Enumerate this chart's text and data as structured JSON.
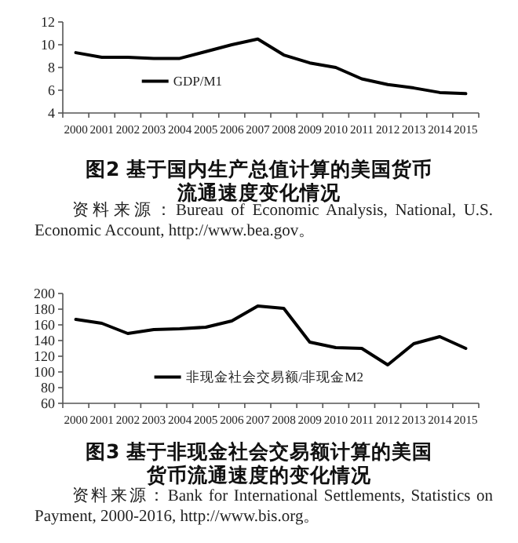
{
  "chart_data": [
    {
      "type": "line",
      "title": "图2  基于国内生产总值计算的美国货币流通速度变化情况",
      "categories": [
        "2000",
        "2001",
        "2002",
        "2003",
        "2004",
        "2005",
        "2006",
        "2007",
        "2008",
        "2009",
        "2010",
        "2011",
        "2012",
        "2013",
        "2014",
        "2015"
      ],
      "series": [
        {
          "name": "GDP/M1",
          "color": "#000000",
          "values": [
            9.3,
            8.9,
            8.9,
            8.8,
            8.8,
            9.4,
            10.0,
            10.5,
            9.1,
            8.4,
            8.0,
            7.0,
            6.5,
            6.2,
            5.8,
            5.7
          ]
        }
      ],
      "ylim": [
        4,
        12
      ],
      "yticks": [
        4,
        6,
        8,
        10,
        12
      ],
      "grid": false,
      "legend": "left",
      "marker": "none",
      "line_style": "solid",
      "annotations": [
        "资料来源：Bureau of Economic Analysis, National, U.S. Economic Account, http://www.bea.gov。"
      ]
    },
    {
      "type": "line",
      "title": "图3  基于非现金社会交易额计算的美国货币流通速度的变化情况",
      "categories": [
        "2000",
        "2001",
        "2002",
        "2003",
        "2004",
        "2005",
        "2006",
        "2007",
        "2008",
        "2009",
        "2010",
        "2011",
        "2012",
        "2013",
        "2014",
        "2015"
      ],
      "series": [
        {
          "name": "非现金社会交易额/非现金M2",
          "color": "#000000",
          "values": [
            167,
            162,
            149,
            154,
            155,
            157,
            165,
            184,
            181,
            138,
            131,
            130,
            109,
            136,
            145,
            130
          ]
        }
      ],
      "ylim": [
        60,
        200
      ],
      "yticks": [
        60,
        80,
        100,
        120,
        140,
        160,
        180,
        200
      ],
      "grid": false,
      "legend": "bottom left",
      "marker": "none",
      "line_style": "solid",
      "annotations": [
        "资料来源：Bank for International Settlements, Statistics on Payment, 2000-2016, http://www.bis.org。"
      ]
    }
  ]
}
